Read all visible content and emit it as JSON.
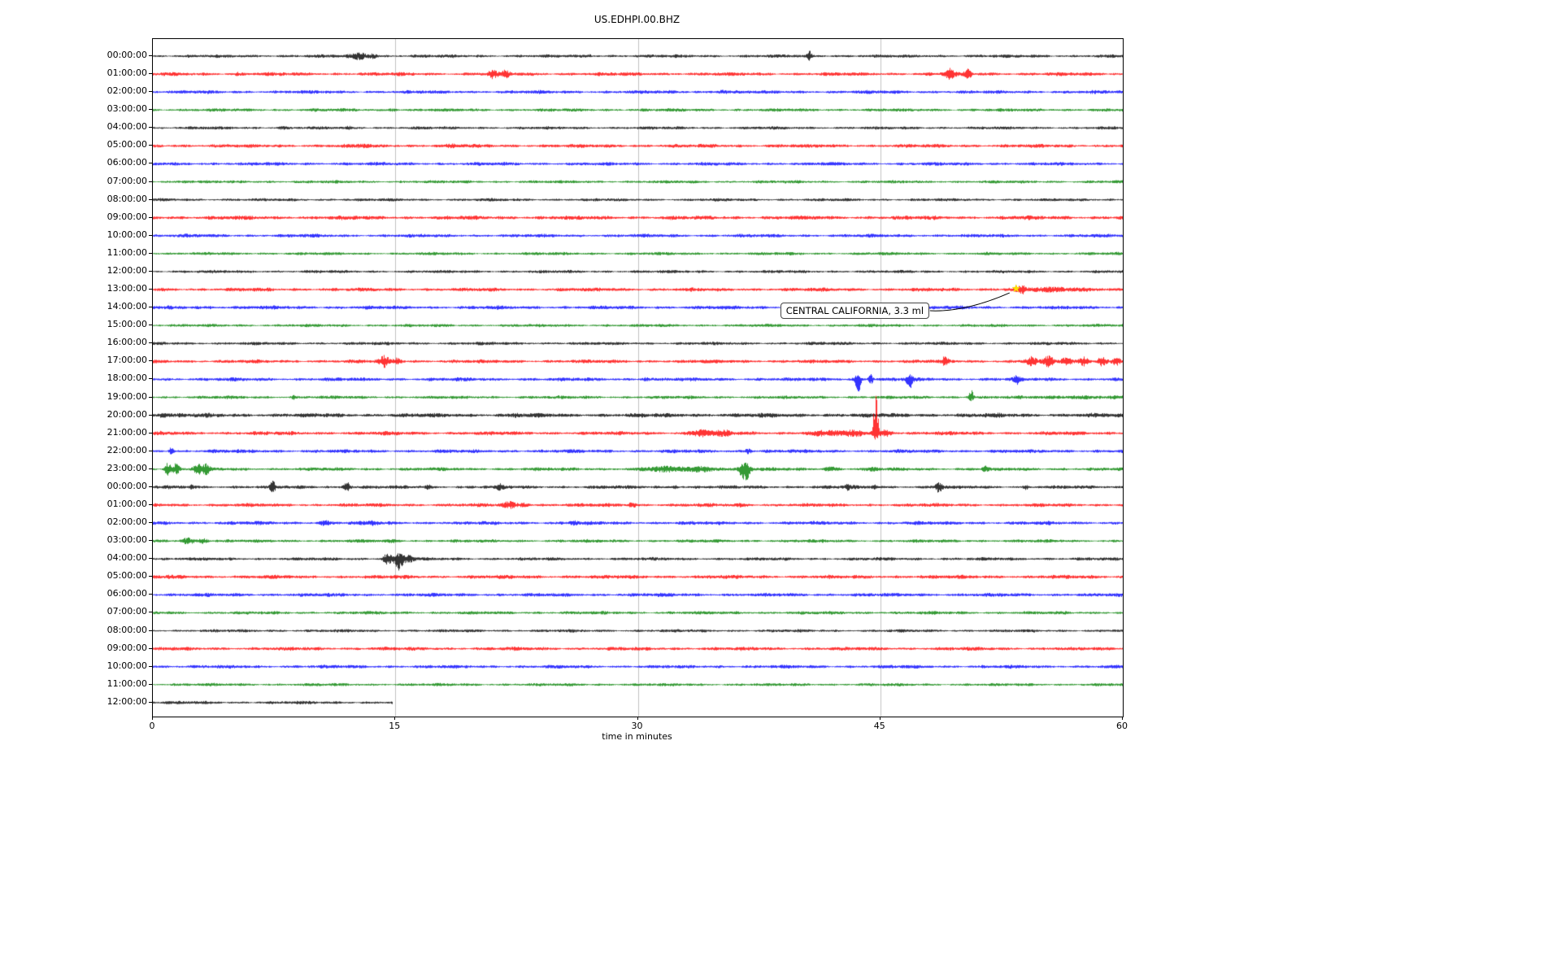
{
  "title": "US.EDHPI.00.BHZ",
  "chart_data": {
    "type": "line",
    "variant": "helicorder-seismogram-dayplot",
    "title": "US.EDHPI.00.BHZ",
    "xlabel": "time in minutes",
    "x_range_minutes": [
      0,
      60
    ],
    "x_ticks": [
      "0",
      "15",
      "30",
      "45",
      "60"
    ],
    "x_tick_values": [
      0,
      15,
      30,
      45,
      60
    ],
    "grid_minutes": [
      15,
      30,
      45
    ],
    "legend": "none",
    "grid": "vertical-only",
    "colors": {
      "black": "#000000",
      "red": "#ff0000",
      "blue": "#0000ff",
      "green": "#008000",
      "grid": "#c0c0c0",
      "star": "#ffdf00"
    },
    "event_marker": {
      "row_index": 13,
      "minute": 53.4,
      "label": "CENTRAL CALIFORNIA, 3.3 ml",
      "symbol": "star"
    },
    "rows": [
      {
        "label": "00:00:00",
        "color": "black",
        "amp": 1.5,
        "events": [
          {
            "m": 12.8,
            "w": 0.5,
            "a": 3.5
          },
          {
            "m": 13.6,
            "w": 0.25,
            "a": 2
          },
          {
            "m": 40.6,
            "w": 0.12,
            "a": 5
          },
          {
            "m": 27.0,
            "w": 0.1,
            "a": 1.5
          }
        ]
      },
      {
        "label": "01:00:00",
        "color": "red",
        "amp": 1.7,
        "events": [
          {
            "m": 21.0,
            "w": 0.3,
            "a": 4
          },
          {
            "m": 21.8,
            "w": 0.25,
            "a": 3
          },
          {
            "m": 49.3,
            "w": 0.25,
            "a": 7
          },
          {
            "m": 50.4,
            "w": 0.2,
            "a": 5
          },
          {
            "m": 5.2,
            "w": 0.1,
            "a": 2
          }
        ]
      },
      {
        "label": "02:00:00",
        "color": "blue",
        "amp": 1.6,
        "events": [
          {
            "m": 35.2,
            "w": 0.4,
            "a": 1.5
          }
        ]
      },
      {
        "label": "03:00:00",
        "color": "green",
        "amp": 1.5,
        "events": [
          {
            "m": 14.8,
            "w": 0.3,
            "a": 1.2
          }
        ]
      },
      {
        "label": "04:00:00",
        "color": "black",
        "amp": 1.4,
        "events": [
          {
            "m": 8.0,
            "w": 0.3,
            "a": 1
          },
          {
            "m": 12.0,
            "w": 0.3,
            "a": 1
          }
        ]
      },
      {
        "label": "05:00:00",
        "color": "red",
        "amp": 1.7,
        "events": [
          {
            "m": 13.0,
            "w": 0.3,
            "a": 1.5
          },
          {
            "m": 18.5,
            "w": 0.3,
            "a": 1.5
          }
        ]
      },
      {
        "label": "06:00:00",
        "color": "blue",
        "amp": 1.6,
        "events": []
      },
      {
        "label": "07:00:00",
        "color": "green",
        "amp": 1.4,
        "events": [
          {
            "m": 2.0,
            "w": 0.3,
            "a": 1.2
          }
        ]
      },
      {
        "label": "08:00:00",
        "color": "black",
        "amp": 1.4,
        "events": []
      },
      {
        "label": "09:00:00",
        "color": "red",
        "amp": 1.9,
        "events": []
      },
      {
        "label": "10:00:00",
        "color": "blue",
        "amp": 1.6,
        "events": []
      },
      {
        "label": "11:00:00",
        "color": "green",
        "amp": 1.4,
        "events": []
      },
      {
        "label": "12:00:00",
        "color": "black",
        "amp": 1.4,
        "events": []
      },
      {
        "label": "13:00:00",
        "color": "red",
        "amp": 1.7,
        "events": [
          {
            "m": 53.7,
            "w": 0.25,
            "a": 3.5
          },
          {
            "m": 56.0,
            "w": 3.0,
            "a": 1.4
          }
        ]
      },
      {
        "label": "14:00:00",
        "color": "blue",
        "amp": 1.7,
        "events": [
          {
            "m": 3.0,
            "w": 1.0,
            "a": 0.5
          }
        ]
      },
      {
        "label": "15:00:00",
        "color": "green",
        "amp": 1.4,
        "events": []
      },
      {
        "label": "16:00:00",
        "color": "black",
        "amp": 1.5,
        "events": []
      },
      {
        "label": "17:00:00",
        "color": "red",
        "amp": 1.7,
        "events": [
          {
            "m": 14.3,
            "w": 0.3,
            "a": 6
          },
          {
            "m": 15.1,
            "w": 0.25,
            "a": 4
          },
          {
            "m": 49.0,
            "w": 0.2,
            "a": 5
          },
          {
            "m": 54.3,
            "w": 0.3,
            "a": 5
          },
          {
            "m": 55.4,
            "w": 0.3,
            "a": 5.5
          },
          {
            "m": 56.5,
            "w": 0.3,
            "a": 3.5
          },
          {
            "m": 57.6,
            "w": 0.3,
            "a": 5
          },
          {
            "m": 58.7,
            "w": 0.3,
            "a": 5
          },
          {
            "m": 59.6,
            "w": 0.3,
            "a": 4
          }
        ]
      },
      {
        "label": "18:00:00",
        "color": "blue",
        "amp": 1.7,
        "events": [
          {
            "m": 43.6,
            "w": 0.18,
            "a": 12,
            "b": -0.5
          },
          {
            "m": 44.4,
            "w": 0.15,
            "a": 6
          },
          {
            "m": 46.8,
            "w": 0.18,
            "a": 9,
            "b": -0.3
          },
          {
            "m": 53.4,
            "w": 0.15,
            "a": 6
          },
          {
            "m": 30.5,
            "w": 0.2,
            "a": 2
          }
        ]
      },
      {
        "label": "19:00:00",
        "color": "green",
        "amp": 1.5,
        "events": [
          {
            "m": 50.6,
            "w": 0.15,
            "a": 7,
            "b": 0.3
          },
          {
            "m": 57.0,
            "w": 2.0,
            "a": 1.2
          },
          {
            "m": 8.7,
            "w": 0.15,
            "a": 2
          }
        ]
      },
      {
        "label": "20:00:00",
        "color": "black",
        "amp": 2.0,
        "events": [
          {
            "m": 0.6,
            "w": 0.25,
            "a": 3
          },
          {
            "m": 22.5,
            "w": 0.2,
            "a": 2
          }
        ]
      },
      {
        "label": "21:00:00",
        "color": "red",
        "amp": 1.8,
        "events": [
          {
            "m": 33.9,
            "w": 0.6,
            "a": 3.5
          },
          {
            "m": 35.3,
            "w": 0.5,
            "a": 2.5
          },
          {
            "m": 41.8,
            "w": 1.2,
            "a": 2
          },
          {
            "m": 43.5,
            "w": 0.5,
            "a": 2.5
          },
          {
            "m": 44.7,
            "w": 0.15,
            "a": 30,
            "b": 0.8
          },
          {
            "m": 45.3,
            "w": 0.5,
            "a": 3
          }
        ]
      },
      {
        "label": "22:00:00",
        "color": "blue",
        "amp": 1.7,
        "events": [
          {
            "m": 1.1,
            "w": 0.15,
            "a": 3.5
          },
          {
            "m": 36.8,
            "w": 0.2,
            "a": 3
          }
        ]
      },
      {
        "label": "23:00:00",
        "color": "green",
        "amp": 1.6,
        "events": [
          {
            "m": 0.9,
            "w": 0.2,
            "a": 7
          },
          {
            "m": 1.4,
            "w": 0.2,
            "a": 6
          },
          {
            "m": 2.8,
            "w": 0.3,
            "a": 5.5
          },
          {
            "m": 3.3,
            "w": 0.2,
            "a": 4.5
          },
          {
            "m": 31.5,
            "w": 1.2,
            "a": 2
          },
          {
            "m": 34.0,
            "w": 1.2,
            "a": 2.5
          },
          {
            "m": 36.6,
            "w": 0.3,
            "a": 12,
            "b": -0.3
          },
          {
            "m": 42.0,
            "w": 0.5,
            "a": 2
          },
          {
            "m": 44.5,
            "w": 0.3,
            "a": 1.5
          },
          {
            "m": 51.5,
            "w": 0.2,
            "a": 2.5
          }
        ]
      },
      {
        "label": "00:00:00",
        "color": "black",
        "amp": 1.6,
        "events": [
          {
            "m": 2.4,
            "w": 0.15,
            "a": 2.5
          },
          {
            "m": 7.4,
            "w": 0.15,
            "a": 6
          },
          {
            "m": 12.0,
            "w": 0.2,
            "a": 6
          },
          {
            "m": 17.0,
            "w": 0.15,
            "a": 2.5
          },
          {
            "m": 21.5,
            "w": 0.2,
            "a": 2.5
          },
          {
            "m": 32.3,
            "w": 0.15,
            "a": 2.5
          },
          {
            "m": 43.0,
            "w": 0.2,
            "a": 3.5
          },
          {
            "m": 44.6,
            "w": 0.15,
            "a": 2.5
          },
          {
            "m": 48.6,
            "w": 0.2,
            "a": 6
          },
          {
            "m": 54.0,
            "w": 0.15,
            "a": 2
          }
        ]
      },
      {
        "label": "01:00:00",
        "color": "red",
        "amp": 1.7,
        "events": [
          {
            "m": 22.0,
            "w": 0.4,
            "a": 3.5
          },
          {
            "m": 22.9,
            "w": 0.3,
            "a": 2.5
          },
          {
            "m": 29.6,
            "w": 0.25,
            "a": 2.5
          },
          {
            "m": 36.5,
            "w": 0.3,
            "a": 1.5
          }
        ]
      },
      {
        "label": "02:00:00",
        "color": "blue",
        "amp": 1.7,
        "events": [
          {
            "m": 10.6,
            "w": 0.4,
            "a": 2
          },
          {
            "m": 13.6,
            "w": 0.3,
            "a": 2
          },
          {
            "m": 26.0,
            "w": 0.3,
            "a": 1.5
          }
        ]
      },
      {
        "label": "03:00:00",
        "color": "green",
        "amp": 1.5,
        "events": [
          {
            "m": 2.1,
            "w": 0.4,
            "a": 3.5
          },
          {
            "m": 3.1,
            "w": 0.3,
            "a": 2.5
          },
          {
            "m": 14.8,
            "w": 0.2,
            "a": 1.5
          }
        ]
      },
      {
        "label": "04:00:00",
        "color": "black",
        "amp": 1.5,
        "events": [
          {
            "m": 14.5,
            "w": 0.3,
            "a": 6
          },
          {
            "m": 15.2,
            "w": 0.25,
            "a": 10,
            "b": -0.4
          },
          {
            "m": 15.8,
            "w": 0.3,
            "a": 4
          }
        ]
      },
      {
        "label": "05:00:00",
        "color": "red",
        "amp": 1.8,
        "events": []
      },
      {
        "label": "06:00:00",
        "color": "blue",
        "amp": 1.7,
        "events": []
      },
      {
        "label": "07:00:00",
        "color": "green",
        "amp": 1.5,
        "events": []
      },
      {
        "label": "08:00:00",
        "color": "black",
        "amp": 1.4,
        "events": []
      },
      {
        "label": "09:00:00",
        "color": "red",
        "amp": 1.7,
        "events": []
      },
      {
        "label": "10:00:00",
        "color": "blue",
        "amp": 1.6,
        "events": []
      },
      {
        "label": "11:00:00",
        "color": "green",
        "amp": 1.4,
        "events": []
      },
      {
        "label": "12:00:00",
        "color": "black",
        "amp": 1.5,
        "end": 14.8,
        "events": []
      }
    ]
  }
}
